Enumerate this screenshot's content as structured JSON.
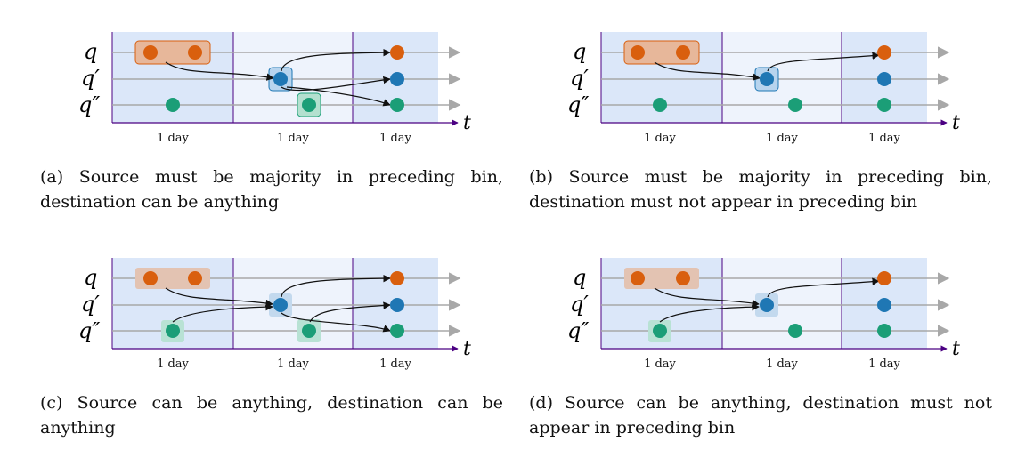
{
  "row_labels": [
    "q",
    "q′",
    "q″"
  ],
  "time_axis_label": "t",
  "bin_labels": [
    "1 day",
    "1 day",
    "1 day"
  ],
  "colors": {
    "orange": "#d95f0e",
    "blue": "#1f77b4",
    "green": "#1b9e77",
    "bin_dark": "#dbe7f9",
    "bin_light": "#eef3fc",
    "axis": "#4b0082",
    "row_line": "#a8a8a8"
  },
  "panels": [
    {
      "id": "a",
      "caption": "(a) Source must be majority in preceding bin, destination can be anything"
    },
    {
      "id": "b",
      "caption": "(b) Source must be majority in preceding bin, destination must not appear in preceding bin"
    },
    {
      "id": "c",
      "caption": "(c) Source can be anything, destination can be anything"
    },
    {
      "id": "d",
      "caption": "(d) Source can be anything, destination must not appear in preceding bin"
    }
  ]
}
